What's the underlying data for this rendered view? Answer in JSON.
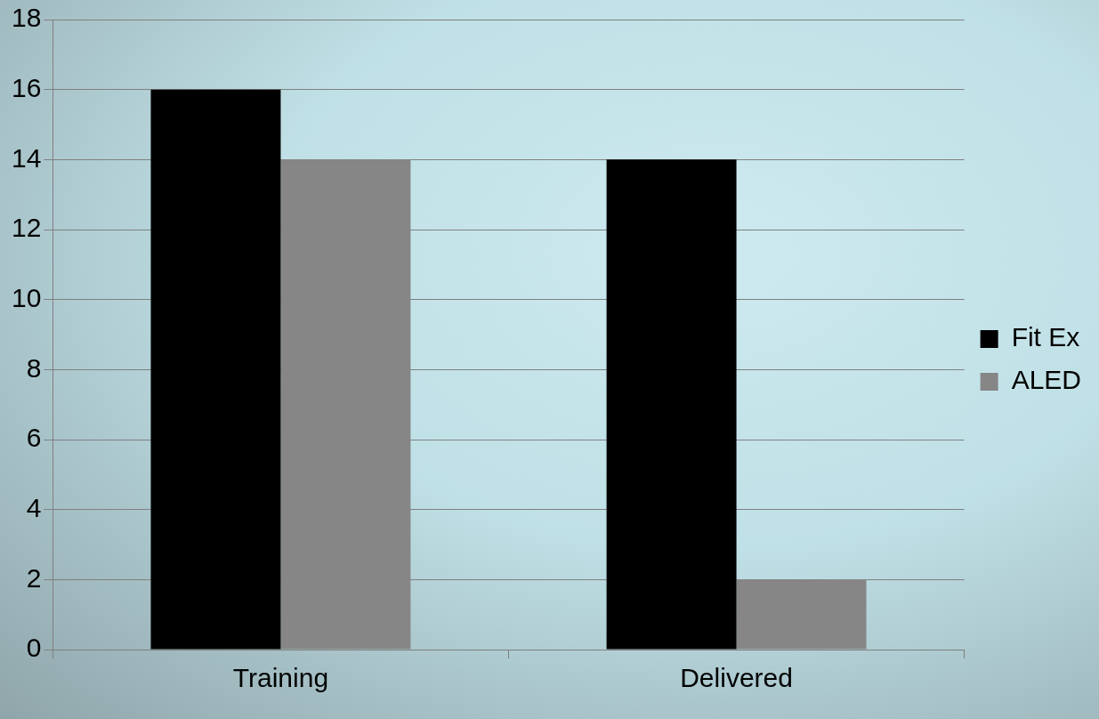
{
  "chart_data": {
    "type": "bar",
    "categories": [
      "Training",
      "Delivered"
    ],
    "series": [
      {
        "name": "Fit Ex",
        "color": "#000000",
        "values": [
          16,
          14
        ]
      },
      {
        "name": "ALED",
        "color": "#868686",
        "values": [
          14,
          2
        ]
      }
    ],
    "ylim": [
      0,
      18
    ],
    "yticks": [
      0,
      2,
      4,
      6,
      8,
      10,
      12,
      14,
      16,
      18
    ],
    "grid": "y",
    "legend": "right"
  }
}
